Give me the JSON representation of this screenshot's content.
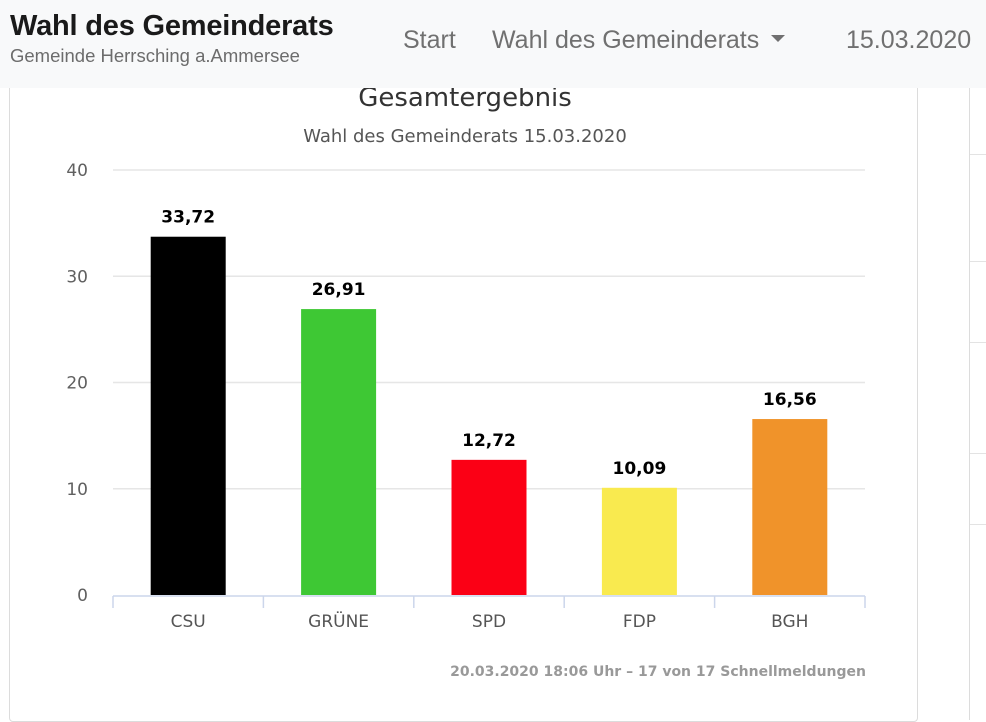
{
  "navbar": {
    "brand_title": "Wahl des Gemeinderats",
    "brand_subtitle": "Gemeinde Herrsching a.Ammersee",
    "links": [
      {
        "label": "Start"
      },
      {
        "label": "Wahl des Gemeinderats",
        "dropdown": true
      },
      {
        "label": "15.03.2020"
      }
    ]
  },
  "chart_data": {
    "type": "bar",
    "title": "Gesamtergebnis",
    "subtitle": "Wahl des Gemeinderats 15.03.2020",
    "categories": [
      "CSU",
      "GRÜNE",
      "SPD",
      "FDP",
      "BGH"
    ],
    "values": [
      33.72,
      26.91,
      12.72,
      10.09,
      16.56
    ],
    "data_labels": [
      "33,72",
      "26,91",
      "12,72",
      "10,09",
      "16,56"
    ],
    "colors": [
      "#000000",
      "#3ec834",
      "#fb0015",
      "#f9ea4f",
      "#f0932a"
    ],
    "xlabel": "",
    "ylabel": "",
    "ylim": [
      0,
      40
    ],
    "yticks": [
      0,
      10,
      20,
      30,
      40
    ],
    "grid": true,
    "legend": "none",
    "credit": "20.03.2020 18:06 Uhr – 17 von 17 Schnellmeldungen"
  },
  "colors": {
    "navbar_bg": "#f8f9fa",
    "gridline": "#e6e6e6",
    "axis_line": "#ccd6eb"
  }
}
